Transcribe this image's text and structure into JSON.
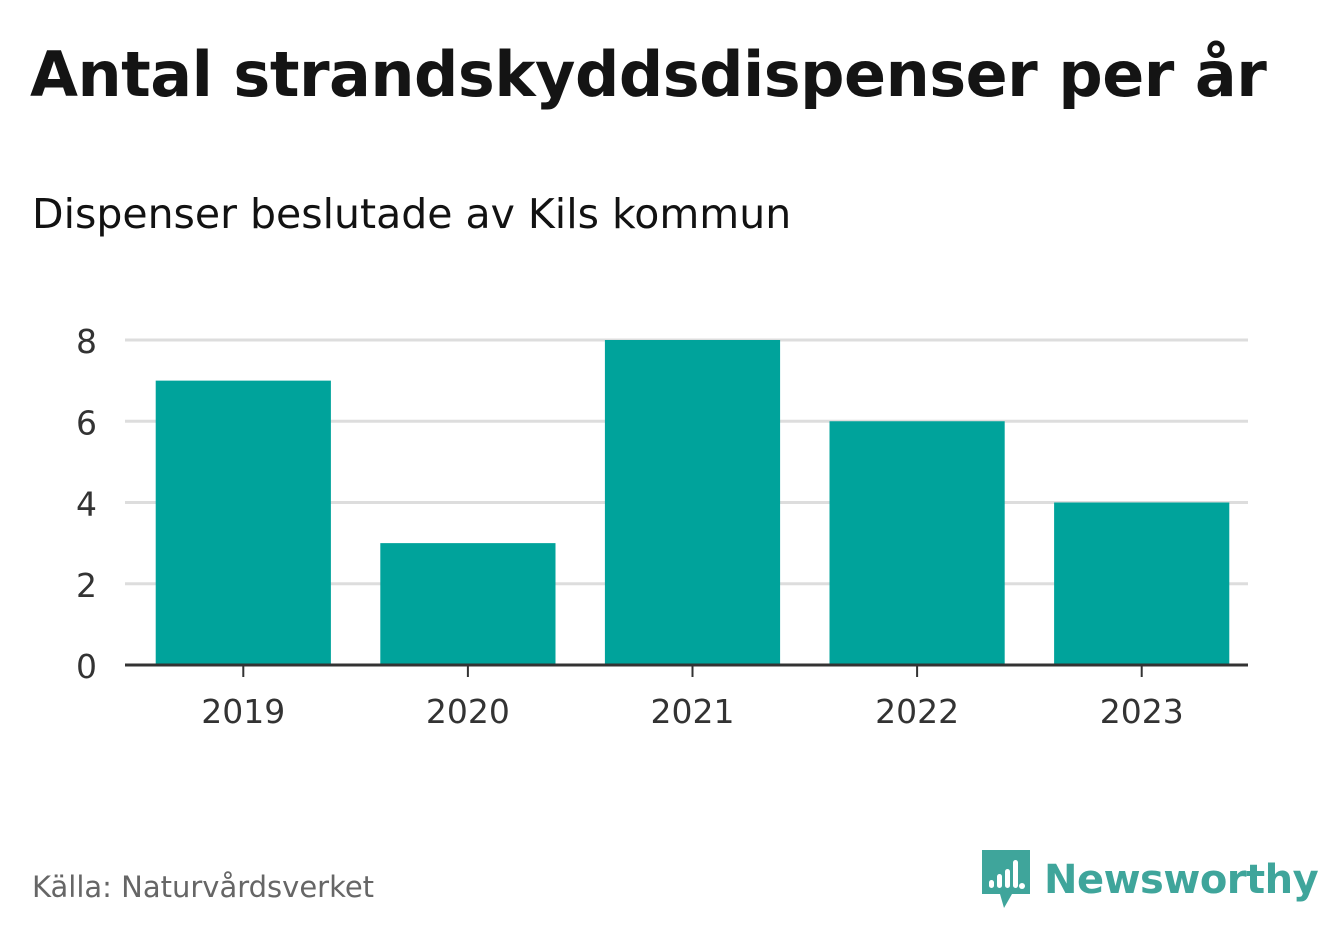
{
  "title": "Antal strandskyddsdispenser per år",
  "subtitle": "Dispenser beslutade av Kils kommun",
  "source": "Källa: Naturvårdsverket",
  "brand": {
    "name": "Newsworthy",
    "logo_icon": "bar-chart-speech-bubble-icon",
    "color": "#3fa59b"
  },
  "colors": {
    "bar": "#00a39b",
    "grid": "#dddddd",
    "axis": "#333333",
    "tick_label": "#333333"
  },
  "chart_data": {
    "type": "bar",
    "title": "Antal strandskyddsdispenser per år",
    "subtitle": "Dispenser beslutade av Kils kommun",
    "categories": [
      "2019",
      "2020",
      "2021",
      "2022",
      "2023"
    ],
    "values": [
      7,
      3,
      8,
      6,
      4
    ],
    "xlabel": "",
    "ylabel": "",
    "ylim": [
      0,
      8
    ],
    "yticks": [
      0,
      2,
      4,
      6,
      8
    ],
    "grid": true,
    "legend": "none"
  }
}
